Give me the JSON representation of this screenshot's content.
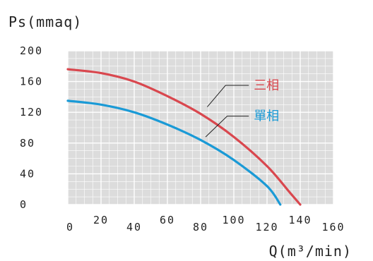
{
  "chart_data": {
    "type": "line",
    "title": "",
    "ylabel": "Ps(mmaq)",
    "xlabel": "Q(m³/min)",
    "xlim": [
      0,
      160
    ],
    "ylim": [
      0,
      200
    ],
    "x_ticks": [
      0,
      20,
      40,
      60,
      80,
      100,
      120,
      140,
      160
    ],
    "y_ticks": [
      0,
      40,
      80,
      120,
      160,
      200
    ],
    "grid": true,
    "legend": "right, with leader lines",
    "series": [
      {
        "name": "三相",
        "color": "#d9474e",
        "x": [
          0,
          20,
          40,
          60,
          80,
          100,
          120,
          134,
          140
        ],
        "y": [
          176,
          171,
          160,
          141,
          118,
          88,
          50,
          15,
          0
        ]
      },
      {
        "name": "單相",
        "color": "#1a9ad6",
        "x": [
          0,
          20,
          40,
          60,
          80,
          100,
          120,
          128
        ],
        "y": [
          135,
          130,
          120,
          104,
          84,
          58,
          24,
          0
        ]
      }
    ]
  }
}
